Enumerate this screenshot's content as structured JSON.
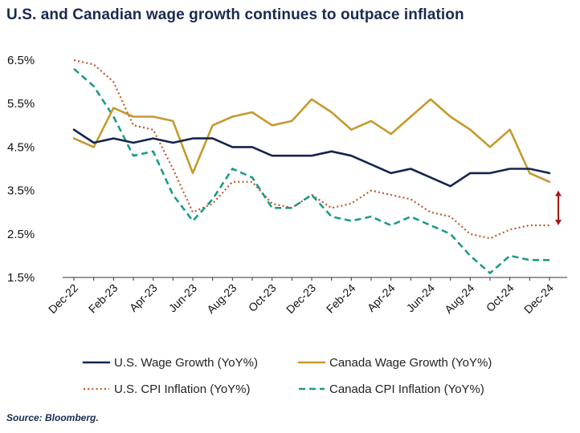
{
  "title": "U.S. and Canadian wage growth continues to outpace inflation",
  "source": "Source: Bloomberg.",
  "colors": {
    "us_wage": "#14244f",
    "canada_wage": "#c59a2e",
    "us_cpi": "#c0582b",
    "canada_cpi": "#1c9c86",
    "arrow": "#b01818",
    "axis": "#333333"
  },
  "chart_data": {
    "type": "line",
    "title": "U.S. and Canadian wage growth continues to outpace inflation",
    "xlabel": "",
    "ylabel": "",
    "ylim": [
      1.5,
      6.5
    ],
    "yticks": [
      "1.5%",
      "2.5%",
      "3.5%",
      "4.5%",
      "5.5%",
      "6.5%"
    ],
    "ytick_values": [
      1.5,
      2.5,
      3.5,
      4.5,
      5.5,
      6.5
    ],
    "x_tick_labels": [
      "Dec-22",
      "Feb-23",
      "Apr-23",
      "Jun-23",
      "Aug-23",
      "Oct-23",
      "Dec-23",
      "Feb-24",
      "Apr-24",
      "Jun-24",
      "Aug-24",
      "Oct-24",
      "Dec-24"
    ],
    "x": [
      "Dec-22",
      "Jan-23",
      "Feb-23",
      "Mar-23",
      "Apr-23",
      "May-23",
      "Jun-23",
      "Jul-23",
      "Aug-23",
      "Sep-23",
      "Oct-23",
      "Nov-23",
      "Dec-23",
      "Jan-24",
      "Feb-24",
      "Mar-24",
      "Apr-24",
      "May-24",
      "Jun-24",
      "Jul-24",
      "Aug-24",
      "Sep-24",
      "Oct-24",
      "Nov-24",
      "Dec-24"
    ],
    "grid": false,
    "legend_position": "bottom",
    "series": [
      {
        "name": "U.S. Wage Growth (YoY%)",
        "style": "solid",
        "values": [
          4.9,
          4.6,
          4.7,
          4.6,
          4.7,
          4.6,
          4.7,
          4.7,
          4.5,
          4.5,
          4.3,
          4.3,
          4.3,
          4.4,
          4.3,
          4.1,
          3.9,
          4.0,
          3.8,
          3.6,
          3.9,
          3.9,
          4.0,
          4.0,
          3.9
        ]
      },
      {
        "name": "Canada Wage Growth (YoY%)",
        "style": "solid",
        "values": [
          4.7,
          4.5,
          5.4,
          5.2,
          5.2,
          5.1,
          3.9,
          5.0,
          5.2,
          5.3,
          5.0,
          5.1,
          5.6,
          5.3,
          4.9,
          5.1,
          4.8,
          5.2,
          5.6,
          5.2,
          4.9,
          4.5,
          4.9,
          3.9,
          3.7
        ]
      },
      {
        "name": "U.S. CPI Inflation (YoY%)",
        "style": "dotted",
        "values": [
          6.5,
          6.4,
          6.0,
          5.0,
          4.9,
          4.0,
          3.0,
          3.2,
          3.7,
          3.7,
          3.2,
          3.1,
          3.4,
          3.1,
          3.2,
          3.5,
          3.4,
          3.3,
          3.0,
          2.9,
          2.5,
          2.4,
          2.6,
          2.7,
          2.7
        ]
      },
      {
        "name": "Canada CPI Inflation (YoY%)",
        "style": "dashed",
        "values": [
          6.3,
          5.9,
          5.2,
          4.3,
          4.4,
          3.4,
          2.8,
          3.3,
          4.0,
          3.8,
          3.1,
          3.1,
          3.4,
          2.9,
          2.8,
          2.9,
          2.7,
          2.9,
          2.7,
          2.5,
          2.0,
          1.6,
          2.0,
          1.9,
          1.9
        ]
      }
    ],
    "annotations": [
      {
        "type": "double-arrow",
        "x": "Dec-24",
        "from": 2.7,
        "to": 3.5
      }
    ]
  }
}
